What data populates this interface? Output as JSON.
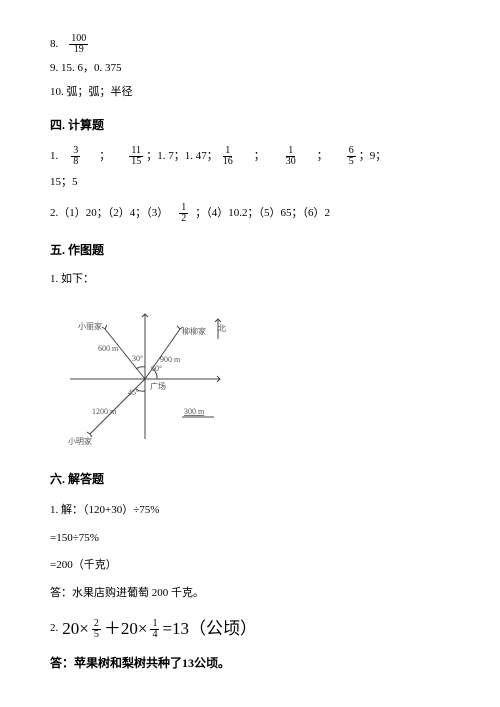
{
  "q8": {
    "prefix": "8.",
    "num": "100",
    "den": "19"
  },
  "q9": "9. 15. 6，0. 375",
  "q10": "10. 弧；弧；半径",
  "sec4": "四. 计算题",
  "s4q1": {
    "prefix": "1.",
    "parts": [
      {
        "type": "frac",
        "num": "3",
        "den": "8"
      },
      {
        "type": "sep"
      },
      {
        "type": "frac",
        "num": "11",
        "den": "15"
      },
      {
        "type": "text",
        "t": "；1. 7；1. 47；"
      },
      {
        "type": "frac",
        "num": "1",
        "den": "16"
      },
      {
        "type": "sep"
      },
      {
        "type": "frac",
        "num": "1",
        "den": "30"
      },
      {
        "type": "sep"
      },
      {
        "type": "frac",
        "num": "6",
        "den": "5"
      },
      {
        "type": "text",
        "t": "；9；"
      }
    ],
    "tail": "15；5"
  },
  "s4q2": {
    "prefix": "2.（1）20；（2）4；（3）",
    "frac": {
      "num": "1",
      "den": "2"
    },
    "suffix": " ；（4）10.2；（5）65；（6）2"
  },
  "sec5": "五. 作图题",
  "s5q1": "1. 如下：",
  "diagram": {
    "labels": {
      "xiaoli": "小丽家",
      "liuliu": "柳柳家",
      "guang": "广场",
      "xiaoming": "小明家",
      "d600": "600 m",
      "d900": "900 m",
      "d1200": "1200 m",
      "scale": "300 m",
      "north": "北",
      "a30": "30°",
      "a60": "60°",
      "a45": "45°"
    },
    "colors": {
      "stroke": "#444444",
      "text": "#555555"
    }
  },
  "sec6": "六. 解答题",
  "s6q1": {
    "l1": "1. 解：（120+30）÷75%",
    "l2": "=150÷75%",
    "l3": "=200（千克）",
    "l4": "答：水果店购进葡萄 200 千克。"
  },
  "s6q2": {
    "prefix": "2.",
    "a": "20×",
    "f1n": "2",
    "f1d": "5",
    "b": "＋20×",
    "f2n": "1",
    "f2d": "4",
    "c": "=13（公顷）",
    "ans": "答：苹果树和梨树共种了13公顷。"
  }
}
